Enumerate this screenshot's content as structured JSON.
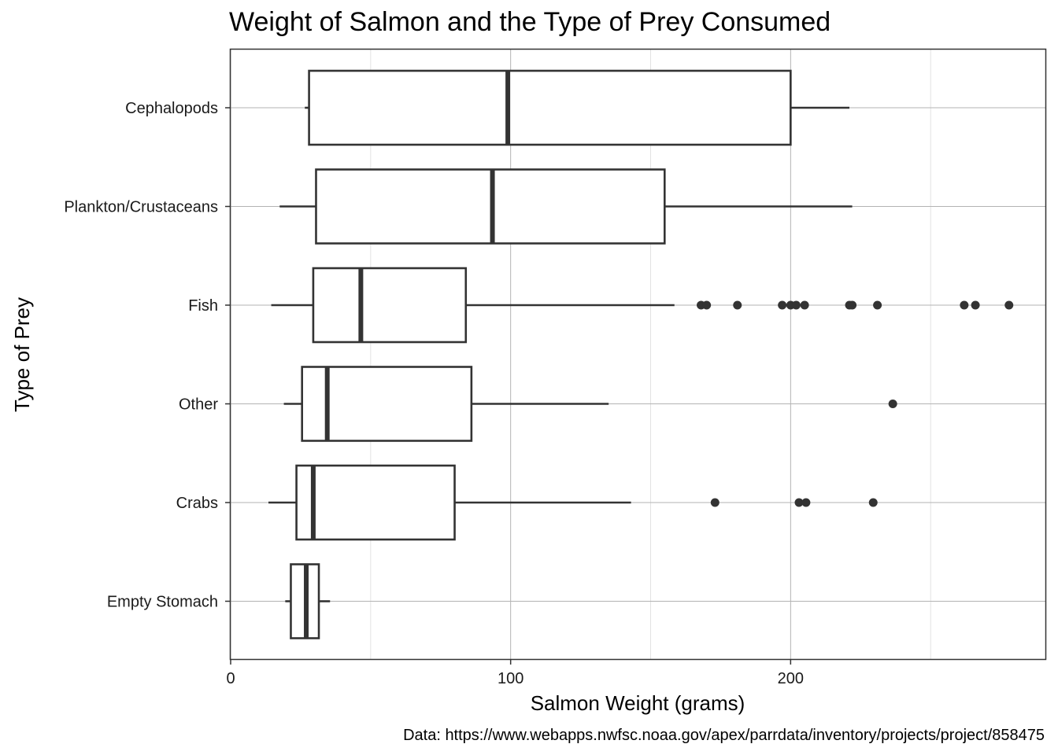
{
  "chart_data": {
    "type": "boxplot",
    "title": "Weight of Salmon and the Type of Prey Consumed",
    "xlabel": "Salmon Weight (grams)",
    "ylabel": "Type of Prey",
    "caption": "Data: https://www.webapps.nwfsc.noaa.gov/apex/parrdata/inventory/projects/project/858475",
    "xlim": [
      0,
      291
    ],
    "x_ticks": [
      0,
      100,
      200
    ],
    "x_minor_ticks": [
      50,
      150,
      250
    ],
    "grid": true,
    "orientation": "horizontal",
    "categories": [
      "Cephalopods",
      "Plankton/Crustaceans",
      "Fish",
      "Other",
      "Crabs",
      "Empty Stomach"
    ],
    "boxes": [
      {
        "category": "Cephalopods",
        "whisker_low": 26.5,
        "q1": 28,
        "median": 99,
        "q3": 200,
        "whisker_high": 221,
        "outliers": []
      },
      {
        "category": "Plankton/Crustaceans",
        "whisker_low": 17.5,
        "q1": 30.5,
        "median": 93.5,
        "q3": 155,
        "whisker_high": 222,
        "outliers": []
      },
      {
        "category": "Fish",
        "whisker_low": 14.5,
        "q1": 29.5,
        "median": 46.5,
        "q3": 84,
        "whisker_high": 158.5,
        "outliers": [
          168,
          170,
          181,
          197,
          200,
          202,
          205,
          221,
          222,
          231,
          262,
          266,
          278
        ]
      },
      {
        "category": "Other",
        "whisker_low": 19,
        "q1": 25.5,
        "median": 34.5,
        "q3": 86,
        "whisker_high": 135,
        "outliers": [
          236.5
        ]
      },
      {
        "category": "Crabs",
        "whisker_low": 13.5,
        "q1": 23.5,
        "median": 29.5,
        "q3": 80,
        "whisker_high": 143,
        "outliers": [
          173,
          203,
          205.5,
          229.5
        ]
      },
      {
        "category": "Empty Stomach",
        "whisker_low": 19.5,
        "q1": 21.5,
        "median": 27,
        "q3": 31.5,
        "whisker_high": 35.5,
        "outliers": []
      }
    ]
  }
}
